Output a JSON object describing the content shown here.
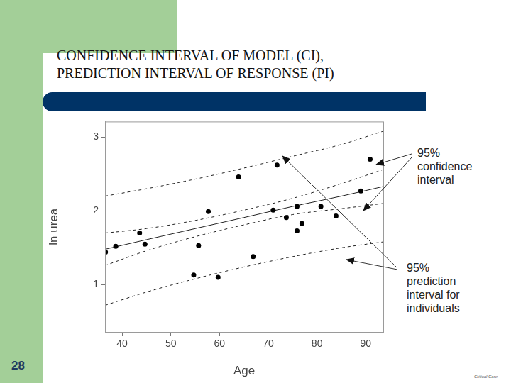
{
  "slide": {
    "title": [
      "CONFIDENCE INTERVAL OF MODEL (CI),",
      "PREDICTION INTERVAL OF RESPONSE (PI)"
    ],
    "number": "28",
    "credit": "Critical Care"
  },
  "chart_data": {
    "type": "scatter",
    "x_label": "Age",
    "y_label": "ln urea",
    "xlim": [
      36.5,
      93.6
    ],
    "xticks": [
      40,
      50,
      60,
      70,
      80,
      90
    ],
    "ylim": [
      0.36,
      3.21
    ],
    "yticks": [
      1,
      2,
      3
    ],
    "grid": false,
    "series": [
      {
        "type": "scatter",
        "marker": "circle",
        "color": "#000000",
        "x": [
          36.6,
          38.7,
          43.6,
          44.7,
          54.7,
          55.7,
          57.7,
          59.7,
          63.9,
          66.9,
          71.0,
          71.8,
          73.7,
          75.9,
          75.9,
          76.9,
          80.8,
          83.9,
          89.0,
          90.9
        ],
        "values": [
          1.44,
          1.52,
          1.7,
          1.55,
          1.13,
          1.53,
          1.99,
          1.1,
          2.46,
          1.38,
          2.01,
          2.62,
          1.91,
          2.06,
          1.73,
          1.83,
          2.06,
          1.93,
          2.27,
          2.7
        ]
      },
      {
        "type": "line",
        "line_style": "solid",
        "color": "#222222",
        "x": [
          36.5,
          45,
          55,
          65,
          75,
          85,
          93.6
        ],
        "values": [
          1.48,
          1.61,
          1.76,
          1.91,
          2.06,
          2.2,
          2.33
        ]
      },
      {
        "type": "line",
        "line_style": "dashed",
        "color": "#222222",
        "x": [
          36.5,
          45,
          55,
          65,
          75,
          85,
          93.6
        ],
        "values": [
          1.7,
          1.76,
          1.87,
          2.01,
          2.17,
          2.37,
          2.56
        ]
      },
      {
        "type": "line",
        "line_style": "dashed",
        "color": "#222222",
        "x": [
          36.5,
          45,
          55,
          65,
          75,
          85,
          93.6
        ],
        "values": [
          1.26,
          1.46,
          1.65,
          1.81,
          1.95,
          2.03,
          2.1
        ]
      },
      {
        "type": "line",
        "line_style": "dashed",
        "color": "#222222",
        "x": [
          36.5,
          45,
          55,
          65,
          75,
          85,
          93.6
        ],
        "values": [
          2.2,
          2.3,
          2.43,
          2.58,
          2.74,
          2.9,
          3.08
        ]
      },
      {
        "type": "line",
        "line_style": "dashed",
        "color": "#222222",
        "x": [
          36.5,
          45,
          55,
          65,
          75,
          85,
          93.6
        ],
        "values": [
          0.72,
          0.9,
          1.08,
          1.24,
          1.38,
          1.5,
          1.58
        ]
      }
    ],
    "annotations": [
      {
        "text": [
          "95%",
          "confidence",
          "interval"
        ]
      },
      {
        "text": [
          "95%",
          "prediction",
          "interval for",
          "individuals"
        ]
      }
    ]
  }
}
